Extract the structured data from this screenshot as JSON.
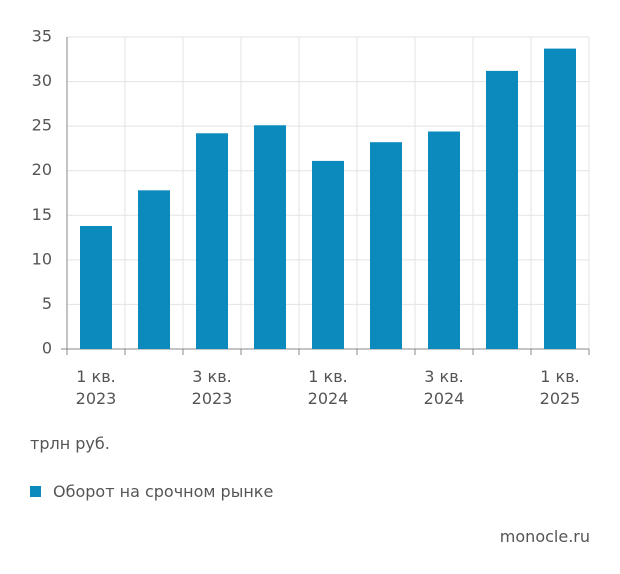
{
  "chart_data": {
    "type": "bar",
    "categories": [
      "1 кв.\n2023",
      null,
      "3 кв.\n2023",
      null,
      "1 кв.\n2024",
      null,
      "3 кв.\n2024",
      null,
      "1 кв.\n2025"
    ],
    "series": [
      {
        "name": "Оборот на срочном рынке",
        "color": "#0b8bbd",
        "values": [
          13.8,
          17.8,
          24.2,
          25.1,
          21.1,
          23.2,
          24.4,
          31.2,
          33.7
        ]
      }
    ],
    "ylim": [
      0,
      35
    ],
    "yticks": [
      0,
      5,
      10,
      15,
      20,
      25,
      30,
      35
    ],
    "grid": true,
    "unit": "трлн руб.",
    "source": "monocle.ru"
  }
}
